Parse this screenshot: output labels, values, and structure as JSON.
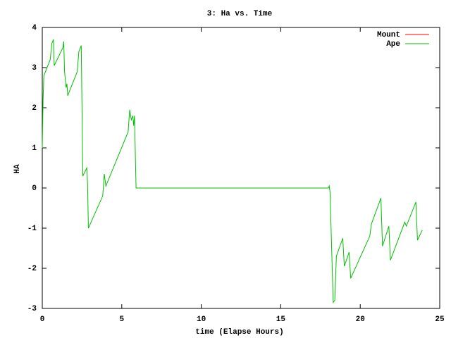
{
  "chart_data": {
    "type": "line",
    "title": "3: Ha vs. Time",
    "x_label": "time (Elapse Hours)",
    "y_label": "HA",
    "xlim": [
      0,
      25
    ],
    "xticks": [
      0,
      5,
      10,
      15,
      20,
      25
    ],
    "ylim": [
      -3,
      4
    ],
    "yticks": [
      -3,
      -2,
      -1,
      0,
      1,
      2,
      3,
      4
    ],
    "legend": "top-right",
    "series": [
      {
        "name": "Mount",
        "color": "#ff0000",
        "x": [],
        "values": []
      },
      {
        "name": "Ape",
        "color": "#00c000",
        "x": [
          0,
          0.05,
          0.1,
          0.5,
          0.6,
          0.7,
          0.75,
          1.3,
          1.35,
          1.4,
          1.5,
          1.55,
          1.6,
          2.2,
          2.3,
          2.45,
          2.5,
          2.55,
          2.8,
          2.85,
          2.9,
          3.8,
          3.9,
          4.0,
          5.4,
          5.5,
          5.6,
          5.7,
          5.75,
          5.8,
          5.9,
          18.0,
          18.05,
          18.1,
          18.3,
          18.4,
          18.5,
          18.9,
          19.0,
          19.3,
          19.4,
          20.6,
          20.7,
          21.3,
          21.4,
          21.8,
          21.9,
          22.8,
          22.9,
          23.5,
          23.6,
          23.9
        ],
        "values": [
          1.0,
          2.2,
          2.8,
          3.2,
          3.6,
          3.7,
          3.05,
          3.5,
          3.65,
          2.9,
          2.5,
          2.6,
          2.3,
          2.9,
          3.4,
          3.55,
          2.0,
          0.3,
          0.5,
          0.1,
          -1.0,
          -0.2,
          0.35,
          0.05,
          1.4,
          1.95,
          1.7,
          1.8,
          1.55,
          1.8,
          0.0,
          0.0,
          0.05,
          -0.1,
          -2.85,
          -2.8,
          -1.7,
          -1.25,
          -1.95,
          -1.6,
          -2.25,
          -1.2,
          -0.9,
          -0.25,
          -1.45,
          -0.95,
          -1.8,
          -0.85,
          -0.95,
          -0.35,
          -1.3,
          -1.05
        ]
      }
    ]
  }
}
